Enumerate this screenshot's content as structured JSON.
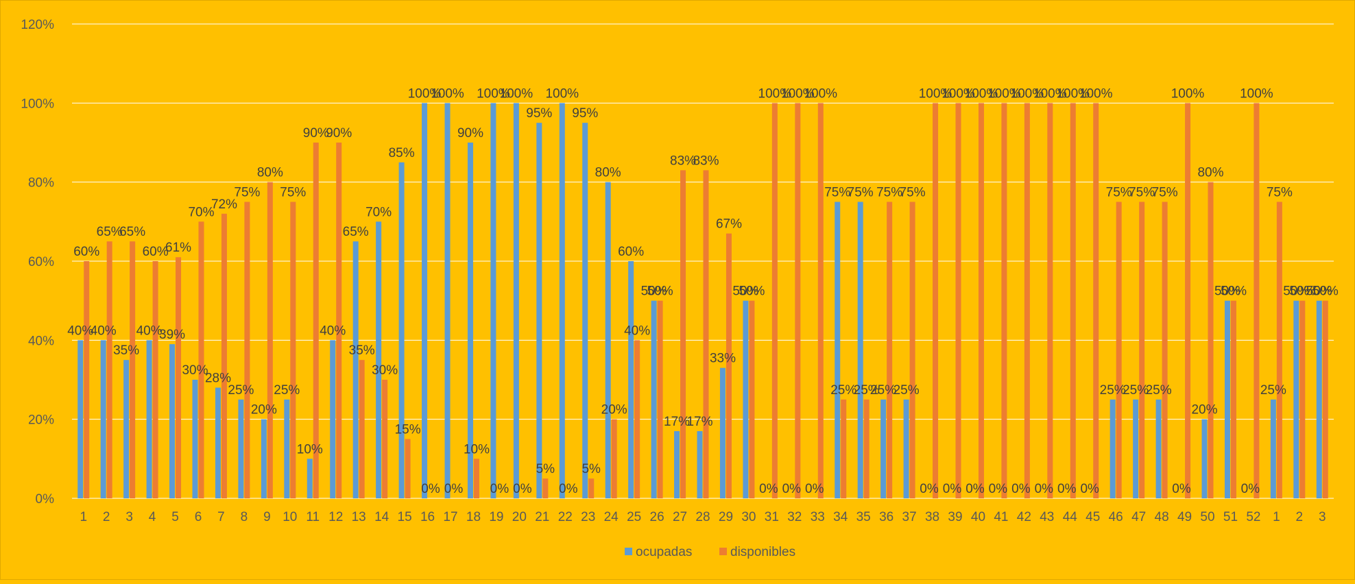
{
  "chart_data": {
    "type": "bar",
    "categories": [
      "1",
      "2",
      "3",
      "4",
      "5",
      "6",
      "7",
      "8",
      "9",
      "10",
      "11",
      "12",
      "13",
      "14",
      "15",
      "16",
      "17",
      "18",
      "19",
      "20",
      "21",
      "22",
      "23",
      "24",
      "25",
      "26",
      "27",
      "28",
      "29",
      "30",
      "31",
      "32",
      "33",
      "34",
      "35",
      "36",
      "37",
      "38",
      "39",
      "40",
      "41",
      "42",
      "43",
      "44",
      "45",
      "46",
      "47",
      "48",
      "49",
      "50",
      "51",
      "52",
      "1",
      "2",
      "3"
    ],
    "series": [
      {
        "name": "ocupadas",
        "color": "#5B9BD5",
        "values": [
          40,
          40,
          35,
          40,
          39,
          30,
          28,
          25,
          20,
          25,
          10,
          40,
          65,
          70,
          85,
          100,
          100,
          90,
          100,
          100,
          95,
          100,
          95,
          80,
          60,
          50,
          17,
          17,
          33,
          50,
          0,
          0,
          0,
          75,
          75,
          25,
          25,
          0,
          0,
          0,
          0,
          0,
          0,
          0,
          0,
          25,
          25,
          25,
          0,
          20,
          50,
          0,
          25,
          50,
          50
        ]
      },
      {
        "name": "disponibles",
        "color": "#ED7D31",
        "values": [
          60,
          65,
          65,
          60,
          61,
          70,
          72,
          75,
          80,
          75,
          90,
          90,
          35,
          30,
          15,
          0,
          0,
          10,
          0,
          0,
          5,
          0,
          5,
          20,
          40,
          50,
          83,
          83,
          67,
          50,
          100,
          100,
          100,
          25,
          25,
          75,
          75,
          100,
          100,
          100,
          100,
          100,
          100,
          100,
          100,
          75,
          75,
          75,
          100,
          80,
          50,
          100,
          75,
          50,
          50
        ]
      }
    ],
    "y_ticks": [
      "0%",
      "20%",
      "40%",
      "60%",
      "80%",
      "100%",
      "120%"
    ],
    "ylim": [
      0,
      120
    ],
    "y_unit": "%",
    "gridlines": true,
    "legend_position": "bottom",
    "background_color": "#FFC000",
    "gridline_color": "#FFFFFF"
  }
}
